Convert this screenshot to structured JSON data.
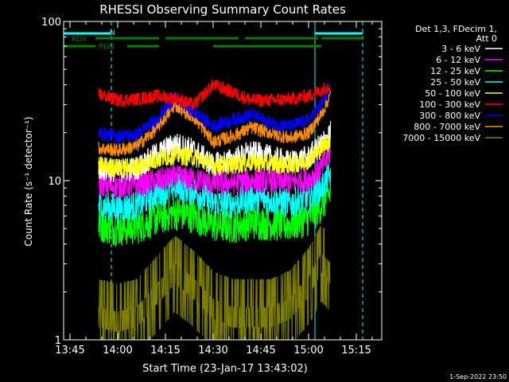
{
  "chart_data": {
    "type": "line",
    "title": "RHESSI Observing Summary Count Rates",
    "xlabel": "Start Time (23-Jan-17 13:43:02)",
    "ylabel": "Count Rate (s⁻¹ detector⁻¹)",
    "yscale": "log",
    "ylim": [
      1,
      100
    ],
    "xlim": [
      "13:43",
      "15:23"
    ],
    "x_ticks": [
      "13:45",
      "14:00",
      "14:15",
      "14:30",
      "14:45",
      "15:00",
      "15:15"
    ],
    "y_ticks": [
      "1",
      "10",
      "100"
    ],
    "grid": false,
    "legend_placement": "right",
    "legend_header": [
      "Det 1,3, FDecim 1,",
      "Att 0"
    ],
    "footer_date": "1-Sep-2022 23:50",
    "flags": [
      {
        "label": "N",
        "color": "#00ffff",
        "segments": [
          [
            "13:43",
            "13:58"
          ],
          [
            "15:02",
            "15:17"
          ]
        ]
      },
      {
        "label": "RD0",
        "color": "#008000",
        "segments": [
          [
            "13:53",
            "14:13"
          ],
          [
            "14:15",
            "14:38"
          ],
          [
            "14:40",
            "15:03"
          ],
          [
            "15:04",
            "15:17"
          ]
        ]
      },
      {
        "label": "RDG",
        "color": "#008000",
        "segments": [
          [
            "13:43",
            "13:53"
          ],
          [
            "14:03",
            "14:13"
          ],
          [
            "14:30",
            "15:04"
          ]
        ]
      }
    ],
    "vlines": [
      {
        "x": "13:43",
        "color": "#00ffff",
        "style": "solid"
      },
      {
        "x": "13:58",
        "color": "#00ffff",
        "style": "dashed"
      },
      {
        "x": "15:02",
        "color": "#00ffff",
        "style": "solid"
      },
      {
        "x": "15:17",
        "color": "#00ffff",
        "style": "dashed"
      }
    ],
    "data_start": "13:54",
    "data_end": "15:07",
    "x": [
      "13:54",
      "14:00",
      "14:06",
      "14:12",
      "14:18",
      "14:24",
      "14:30",
      "14:36",
      "14:42",
      "14:48",
      "14:54",
      "15:00",
      "15:04",
      "15:07"
    ],
    "series": [
      {
        "name": "3 - 6 keV",
        "color": "#ffffff",
        "values": [
          12.0,
          11.5,
          12.0,
          14.5,
          17.0,
          15.5,
          12.5,
          13.5,
          15.0,
          14.0,
          13.0,
          14.0,
          17.0,
          20.0
        ]
      },
      {
        "name": "6 - 12 keV",
        "color": "#ff00ff",
        "values": [
          9.5,
          9.2,
          9.4,
          10.0,
          10.5,
          10.2,
          9.6,
          9.7,
          10.0,
          10.0,
          9.8,
          10.2,
          12.0,
          15.0
        ]
      },
      {
        "name": "12 - 25 keV",
        "color": "#00ff00",
        "values": [
          5.3,
          5.0,
          5.1,
          5.8,
          6.3,
          6.0,
          5.3,
          5.2,
          5.5,
          5.4,
          5.3,
          5.8,
          7.0,
          8.5
        ]
      },
      {
        "name": "25 - 50 keV",
        "color": "#00ffff",
        "values": [
          7.0,
          6.7,
          7.0,
          8.3,
          9.2,
          8.6,
          7.2,
          7.2,
          7.8,
          7.6,
          7.2,
          7.8,
          9.0,
          11.0
        ]
      },
      {
        "name": "50 - 100 keV",
        "color": "#ffff00",
        "values": [
          12.5,
          12.0,
          12.2,
          13.5,
          14.5,
          14.0,
          12.5,
          12.6,
          13.0,
          12.8,
          12.5,
          13.5,
          16.0,
          18.0
        ]
      },
      {
        "name": "100 - 300 keV",
        "color": "#ff0000",
        "values": [
          35.0,
          32.0,
          32.5,
          34.0,
          33.0,
          30.0,
          40.0,
          36.0,
          32.0,
          32.0,
          32.5,
          34.0,
          37.0,
          40.0
        ]
      },
      {
        "name": "300 - 800 keV",
        "color": "#0000ff",
        "values": [
          20.0,
          19.0,
          19.5,
          24.0,
          33.0,
          27.0,
          22.0,
          24.0,
          26.0,
          23.0,
          22.0,
          24.0,
          30.0,
          38.0
        ]
      },
      {
        "name": "800 - 7000 keV",
        "color": "#ff8c00",
        "values": [
          16.0,
          15.5,
          16.5,
          21.0,
          30.0,
          25.0,
          17.5,
          19.0,
          21.5,
          20.0,
          18.5,
          20.0,
          26.0,
          35.0
        ]
      },
      {
        "name": "7000 - 15000 keV",
        "color": "#808000",
        "values": [
          1.6,
          1.5,
          1.6,
          2.2,
          3.0,
          2.4,
          1.8,
          1.6,
          1.6,
          1.6,
          1.8,
          2.5,
          3.5,
          3.0
        ]
      }
    ]
  }
}
